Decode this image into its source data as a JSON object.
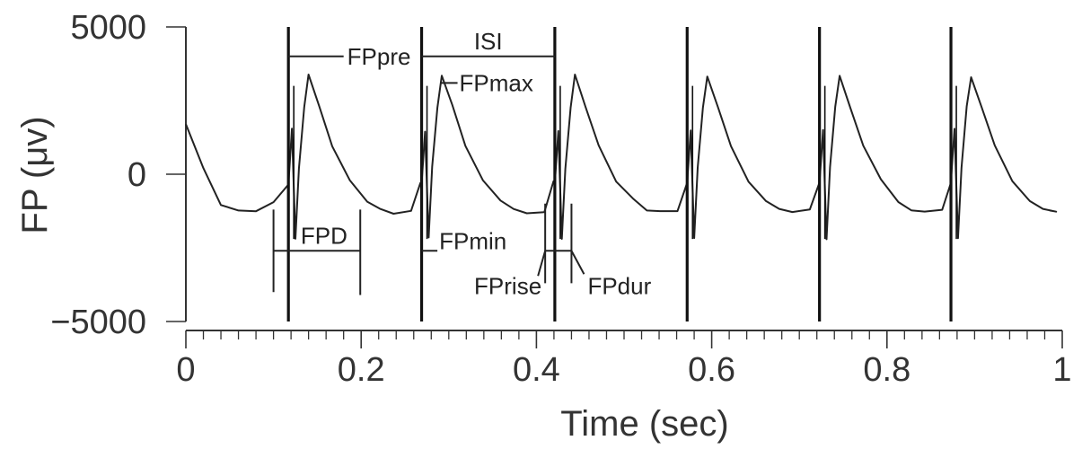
{
  "chart_data": {
    "type": "line",
    "xlabel": "Time (sec)",
    "ylabel": "FP (μv)",
    "xlim": [
      0,
      1
    ],
    "ylim": [
      -5000,
      5000
    ],
    "x_ticks": [
      {
        "value": 0,
        "label": "0"
      },
      {
        "value": 0.2,
        "label": "0.2"
      },
      {
        "value": 0.4,
        "label": "0.4"
      },
      {
        "value": 0.6,
        "label": "0.6"
      },
      {
        "value": 0.8,
        "label": "0.8"
      },
      {
        "value": 1,
        "label": "1"
      }
    ],
    "y_ticks": [
      {
        "value": 5000,
        "label": "5000"
      },
      {
        "value": 0,
        "label": "0"
      },
      {
        "value": -5000,
        "label": "−5000"
      }
    ],
    "grid": false,
    "spikes": [
      0.117,
      0.269,
      0.421,
      0.572,
      0.723,
      0.873
    ],
    "beat_period": 0.1505,
    "beat_first": 0.117,
    "series": [
      {
        "waveform": {
          "start": [
            [
              0.0,
              1700
            ],
            [
              0.02,
              200
            ],
            [
              0.04,
              -1000
            ],
            [
              0.06,
              -1200
            ],
            [
              0.08,
              -1250
            ],
            [
              0.1,
              -950
            ]
          ],
          "beat": [
            [
              0.0,
              -300
            ],
            [
              0.004,
              1500
            ],
            [
              0.008,
              -2200
            ],
            [
              0.012,
              200
            ],
            [
              0.018,
              2300
            ],
            [
              0.023,
              3350
            ],
            [
              0.035,
              2300
            ],
            [
              0.05,
              1000
            ],
            [
              0.07,
              -200
            ],
            [
              0.09,
              -900
            ],
            [
              0.105,
              -1200
            ],
            [
              0.12,
              -1300
            ],
            [
              0.14,
              -1250
            ],
            [
              0.1505,
              -300
            ]
          ],
          "end": [
            [
              0.985,
              -1200
            ]
          ]
        }
      }
    ],
    "annotations": {
      "FPpre": "FPpre",
      "ISI": "ISI",
      "FPmax": "FPmax",
      "FPD": "FPD",
      "FPmin": "FPmin",
      "FPrise": "FPrise",
      "FPdur": "FPdur"
    },
    "annotation_positions": {
      "FPpre": {
        "x1": 0.117,
        "x2": 0.18,
        "y": 4000
      },
      "ISI": {
        "x1": 0.269,
        "x2": 0.421,
        "y": 4000
      },
      "FPmax": {
        "x1": 0.29,
        "x2": 0.31,
        "y": 3100
      },
      "FPD": {
        "x1": 0.1,
        "x2": 0.199,
        "y": -2600
      },
      "FPmin": {
        "x1": 0.269,
        "x2": 0.287,
        "y": -2600
      },
      "FPrise": {
        "x1": 0.41,
        "x2": 0.424,
        "y": -2600
      },
      "FPdur": {
        "x1": 0.424,
        "x2": 0.44,
        "y": -2600
      }
    }
  }
}
